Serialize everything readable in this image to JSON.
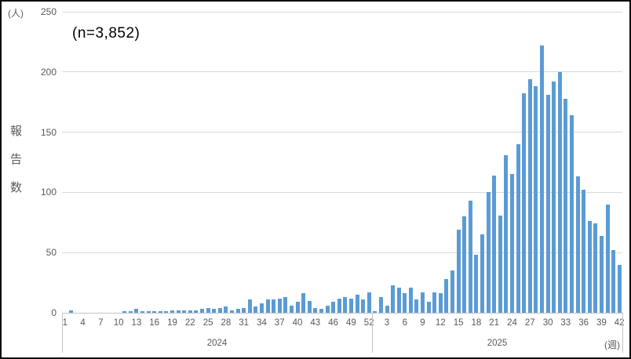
{
  "chart_data": {
    "type": "bar",
    "title": "(n=3,852)",
    "ylabel": "報告数",
    "y_unit": "(人)",
    "x_unit": "(週)",
    "ylim": [
      0,
      250
    ],
    "yticks": [
      0,
      50,
      100,
      150,
      200,
      250
    ],
    "grid": true,
    "legend": "none",
    "bar_color": "#5B9BD5",
    "series": [
      {
        "name": "2024",
        "weeks": "1-52",
        "x_tick_labels": [
          1,
          4,
          7,
          10,
          13,
          16,
          19,
          22,
          25,
          28,
          31,
          34,
          37,
          40,
          43,
          46,
          49,
          52
        ],
        "values": [
          0,
          2,
          0,
          0,
          0,
          0,
          0,
          0,
          0,
          0,
          1,
          1,
          3,
          1,
          1,
          1,
          1,
          1,
          2,
          2,
          2,
          2,
          2,
          3,
          4,
          3,
          4,
          5,
          2,
          3,
          4,
          11,
          5,
          8,
          11,
          11,
          12,
          13,
          6,
          9,
          16,
          10,
          4,
          3,
          6,
          9,
          12,
          13,
          12,
          15,
          11,
          17
        ]
      },
      {
        "name": "2025",
        "weeks": "1-42",
        "x_tick_labels": [
          3,
          6,
          9,
          12,
          15,
          18,
          21,
          24,
          27,
          30,
          33,
          36,
          39,
          42
        ],
        "values": [
          1,
          13,
          6,
          23,
          21,
          16,
          21,
          11,
          17,
          9,
          17,
          16,
          28,
          35,
          69,
          80,
          93,
          48,
          65,
          100,
          114,
          81,
          131,
          115,
          140,
          182,
          194,
          188,
          222,
          181,
          192,
          200,
          178,
          164,
          113,
          102,
          76,
          74,
          64,
          90,
          52,
          40
        ]
      }
    ]
  }
}
